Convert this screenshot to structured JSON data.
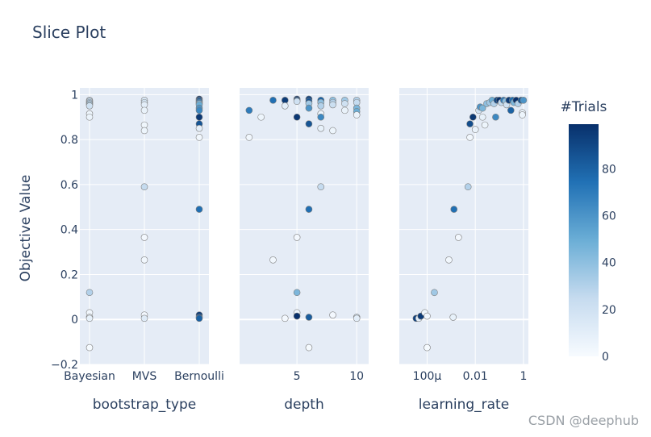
{
  "chart_data": {
    "type": "scatter",
    "title": "Slice Plot",
    "ylabel": "Objective Value",
    "ylim": [
      -0.2,
      1.03
    ],
    "y_ticks": [
      {
        "value": 1,
        "label": "1"
      },
      {
        "value": 0.8,
        "label": "0.8"
      },
      {
        "value": 0.6,
        "label": "0.6"
      },
      {
        "value": 0.4,
        "label": "0.4"
      },
      {
        "value": 0.2,
        "label": "0.2"
      },
      {
        "value": 0,
        "label": "0"
      },
      {
        "value": -0.2,
        "label": "−0.2"
      }
    ],
    "colorbar": {
      "title": "#Trials",
      "range": [
        0,
        99
      ],
      "ticks": [
        {
          "value": 0,
          "label": "0"
        },
        {
          "value": 20,
          "label": "20"
        },
        {
          "value": 40,
          "label": "40"
        },
        {
          "value": 60,
          "label": "60"
        },
        {
          "value": 80,
          "label": "80"
        }
      ],
      "colors": [
        "#f7fbff",
        "#c6dbef",
        "#6baed6",
        "#2171b5",
        "#08306b"
      ]
    },
    "panels": [
      {
        "name": "bootstrap_type",
        "xlabel": "bootstrap_type",
        "scale": "category",
        "categories": [
          "Bayesian",
          "MVS",
          "Bernoulli"
        ],
        "points": [
          {
            "x": "Bayesian",
            "y": 0.975,
            "trial": 22
          },
          {
            "x": "Bayesian",
            "y": 0.97,
            "trial": 24
          },
          {
            "x": "Bayesian",
            "y": 0.965,
            "trial": 30
          },
          {
            "x": "Bayesian",
            "y": 0.96,
            "trial": 28
          },
          {
            "x": "Bayesian",
            "y": 0.955,
            "trial": 35
          },
          {
            "x": "Bayesian",
            "y": 0.95,
            "trial": 20
          },
          {
            "x": "Bayesian",
            "y": 0.915,
            "trial": 5
          },
          {
            "x": "Bayesian",
            "y": 0.9,
            "trial": 6
          },
          {
            "x": "Bayesian",
            "y": 0.12,
            "trial": 30
          },
          {
            "x": "Bayesian",
            "y": 0.03,
            "trial": 3
          },
          {
            "x": "Bayesian",
            "y": 0.01,
            "trial": 4
          },
          {
            "x": "Bayesian",
            "y": 0.005,
            "trial": 8
          },
          {
            "x": "Bayesian",
            "y": -0.125,
            "trial": 1
          },
          {
            "x": "MVS",
            "y": 0.975,
            "trial": 15
          },
          {
            "x": "MVS",
            "y": 0.965,
            "trial": 18
          },
          {
            "x": "MVS",
            "y": 0.955,
            "trial": 10
          },
          {
            "x": "MVS",
            "y": 0.93,
            "trial": 7
          },
          {
            "x": "MVS",
            "y": 0.865,
            "trial": 4
          },
          {
            "x": "MVS",
            "y": 0.84,
            "trial": 5
          },
          {
            "x": "MVS",
            "y": 0.59,
            "trial": 25
          },
          {
            "x": "MVS",
            "y": 0.365,
            "trial": 2
          },
          {
            "x": "MVS",
            "y": 0.265,
            "trial": 3
          },
          {
            "x": "MVS",
            "y": 0.02,
            "trial": 2
          },
          {
            "x": "MVS",
            "y": 0.005,
            "trial": 12
          },
          {
            "x": "Bernoulli",
            "y": 0.98,
            "trial": 99
          },
          {
            "x": "Bernoulli",
            "y": 0.975,
            "trial": 90
          },
          {
            "x": "Bernoulli",
            "y": 0.97,
            "trial": 80
          },
          {
            "x": "Bernoulli",
            "y": 0.965,
            "trial": 70
          },
          {
            "x": "Bernoulli",
            "y": 0.96,
            "trial": 40
          },
          {
            "x": "Bernoulli",
            "y": 0.955,
            "trial": 50
          },
          {
            "x": "Bernoulli",
            "y": 0.94,
            "trial": 60
          },
          {
            "x": "Bernoulli",
            "y": 0.93,
            "trial": 65
          },
          {
            "x": "Bernoulli",
            "y": 0.9,
            "trial": 96
          },
          {
            "x": "Bernoulli",
            "y": 0.87,
            "trial": 85
          },
          {
            "x": "Bernoulli",
            "y": 0.85,
            "trial": 9
          },
          {
            "x": "Bernoulli",
            "y": 0.81,
            "trial": 3
          },
          {
            "x": "Bernoulli",
            "y": 0.49,
            "trial": 75
          },
          {
            "x": "Bernoulli",
            "y": 0.02,
            "trial": 95
          },
          {
            "x": "Bernoulli",
            "y": 0.01,
            "trial": 88
          },
          {
            "x": "Bernoulli",
            "y": 0.005,
            "trial": 80
          }
        ]
      },
      {
        "name": "depth",
        "xlabel": "depth",
        "scale": "linear",
        "xlim": [
          0.2,
          11
        ],
        "ticks": [
          {
            "value": 5,
            "label": "5"
          },
          {
            "value": 10,
            "label": "10"
          }
        ],
        "points": [
          {
            "x": 1,
            "y": 0.93,
            "trial": 70
          },
          {
            "x": 1,
            "y": 0.81,
            "trial": 3
          },
          {
            "x": 2,
            "y": 0.9,
            "trial": 5
          },
          {
            "x": 3,
            "y": 0.975,
            "trial": 75
          },
          {
            "x": 3,
            "y": 0.265,
            "trial": 3
          },
          {
            "x": 4,
            "y": 0.975,
            "trial": 95
          },
          {
            "x": 4,
            "y": 0.95,
            "trial": 10
          },
          {
            "x": 4,
            "y": 0.005,
            "trial": 2
          },
          {
            "x": 5,
            "y": 0.98,
            "trial": 99
          },
          {
            "x": 5,
            "y": 0.975,
            "trial": 88
          },
          {
            "x": 5,
            "y": 0.97,
            "trial": 20
          },
          {
            "x": 5,
            "y": 0.9,
            "trial": 96
          },
          {
            "x": 5,
            "y": 0.365,
            "trial": 2
          },
          {
            "x": 5,
            "y": 0.12,
            "trial": 45
          },
          {
            "x": 5,
            "y": 0.03,
            "trial": 4
          },
          {
            "x": 5,
            "y": 0.015,
            "trial": 99
          },
          {
            "x": 6,
            "y": 0.98,
            "trial": 92
          },
          {
            "x": 6,
            "y": 0.97,
            "trial": 85
          },
          {
            "x": 6,
            "y": 0.96,
            "trial": 35
          },
          {
            "x": 6,
            "y": 0.94,
            "trial": 60
          },
          {
            "x": 6,
            "y": 0.87,
            "trial": 85
          },
          {
            "x": 6,
            "y": 0.49,
            "trial": 75
          },
          {
            "x": 6,
            "y": 0.01,
            "trial": 82
          },
          {
            "x": 6,
            "y": -0.125,
            "trial": 1
          },
          {
            "x": 7,
            "y": 0.975,
            "trial": 80
          },
          {
            "x": 7,
            "y": 0.965,
            "trial": 40
          },
          {
            "x": 7,
            "y": 0.95,
            "trial": 30
          },
          {
            "x": 7,
            "y": 0.915,
            "trial": 5
          },
          {
            "x": 7,
            "y": 0.9,
            "trial": 65
          },
          {
            "x": 7,
            "y": 0.85,
            "trial": 8
          },
          {
            "x": 7,
            "y": 0.59,
            "trial": 25
          },
          {
            "x": 8,
            "y": 0.975,
            "trial": 40
          },
          {
            "x": 8,
            "y": 0.965,
            "trial": 30
          },
          {
            "x": 8,
            "y": 0.955,
            "trial": 22
          },
          {
            "x": 8,
            "y": 0.84,
            "trial": 5
          },
          {
            "x": 8,
            "y": 0.02,
            "trial": 2
          },
          {
            "x": 9,
            "y": 0.975,
            "trial": 35
          },
          {
            "x": 9,
            "y": 0.96,
            "trial": 20
          },
          {
            "x": 9,
            "y": 0.93,
            "trial": 7
          },
          {
            "x": 10,
            "y": 0.975,
            "trial": 30
          },
          {
            "x": 10,
            "y": 0.965,
            "trial": 25
          },
          {
            "x": 10,
            "y": 0.94,
            "trial": 45
          },
          {
            "x": 10,
            "y": 0.925,
            "trial": 50
          },
          {
            "x": 10,
            "y": 0.91,
            "trial": 6
          },
          {
            "x": 10,
            "y": 0.01,
            "trial": 18
          },
          {
            "x": 10,
            "y": 0.005,
            "trial": 10
          }
        ]
      },
      {
        "name": "learning_rate",
        "xlabel": "learning_rate",
        "scale": "log",
        "xlim": [
          7e-06,
          1.6
        ],
        "ticks": [
          {
            "value": 0.0001,
            "label": "100μ"
          },
          {
            "value": 0.01,
            "label": "0.01"
          },
          {
            "value": 1,
            "label": "1"
          }
        ],
        "points": [
          {
            "x": 3.5e-05,
            "y": 0.005,
            "trial": 92
          },
          {
            "x": 4.5e-05,
            "y": 0.005,
            "trial": 10
          },
          {
            "x": 5.5e-05,
            "y": 0.015,
            "trial": 95
          },
          {
            "x": 8e-05,
            "y": 0.03,
            "trial": 4
          },
          {
            "x": 0.0001,
            "y": 0.015,
            "trial": 3
          },
          {
            "x": 0.0001,
            "y": -0.125,
            "trial": 1
          },
          {
            "x": 0.0002,
            "y": 0.12,
            "trial": 35
          },
          {
            "x": 0.0008,
            "y": 0.265,
            "trial": 3
          },
          {
            "x": 0.0012,
            "y": 0.01,
            "trial": 8
          },
          {
            "x": 0.0013,
            "y": 0.49,
            "trial": 75
          },
          {
            "x": 0.002,
            "y": 0.365,
            "trial": 2
          },
          {
            "x": 0.005,
            "y": 0.59,
            "trial": 30
          },
          {
            "x": 0.006,
            "y": 0.87,
            "trial": 88
          },
          {
            "x": 0.006,
            "y": 0.81,
            "trial": 3
          },
          {
            "x": 0.008,
            "y": 0.9,
            "trial": 96
          },
          {
            "x": 0.01,
            "y": 0.845,
            "trial": 6
          },
          {
            "x": 0.014,
            "y": 0.93,
            "trial": 20
          },
          {
            "x": 0.016,
            "y": 0.945,
            "trial": 60
          },
          {
            "x": 0.02,
            "y": 0.94,
            "trial": 45
          },
          {
            "x": 0.02,
            "y": 0.9,
            "trial": 8
          },
          {
            "x": 0.025,
            "y": 0.865,
            "trial": 5
          },
          {
            "x": 0.03,
            "y": 0.96,
            "trial": 40
          },
          {
            "x": 0.04,
            "y": 0.965,
            "trial": 35
          },
          {
            "x": 0.05,
            "y": 0.975,
            "trial": 50
          },
          {
            "x": 0.06,
            "y": 0.96,
            "trial": 30
          },
          {
            "x": 0.07,
            "y": 0.9,
            "trial": 65
          },
          {
            "x": 0.08,
            "y": 0.975,
            "trial": 90
          },
          {
            "x": 0.1,
            "y": 0.975,
            "trial": 99
          },
          {
            "x": 0.12,
            "y": 0.965,
            "trial": 25
          },
          {
            "x": 0.15,
            "y": 0.975,
            "trial": 70
          },
          {
            "x": 0.18,
            "y": 0.97,
            "trial": 40
          },
          {
            "x": 0.2,
            "y": 0.955,
            "trial": 20
          },
          {
            "x": 0.25,
            "y": 0.975,
            "trial": 95
          },
          {
            "x": 0.3,
            "y": 0.93,
            "trial": 80
          },
          {
            "x": 0.35,
            "y": 0.975,
            "trial": 75
          },
          {
            "x": 0.4,
            "y": 0.965,
            "trial": 45
          },
          {
            "x": 0.5,
            "y": 0.975,
            "trial": 99
          },
          {
            "x": 0.6,
            "y": 0.96,
            "trial": 30
          },
          {
            "x": 0.8,
            "y": 0.975,
            "trial": 85
          },
          {
            "x": 0.9,
            "y": 0.92,
            "trial": 7
          },
          {
            "x": 0.9,
            "y": 0.91,
            "trial": 5
          },
          {
            "x": 1,
            "y": 0.975,
            "trial": 60
          }
        ]
      }
    ]
  },
  "watermark": "CSDN @deephub"
}
